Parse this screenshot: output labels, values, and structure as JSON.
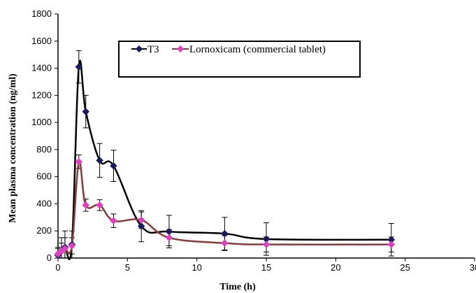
{
  "chart_data": {
    "type": "line",
    "xlabel": "Time (h)",
    "ylabel": "Mean plasma concentration (ng/ml)",
    "xlim": [
      0,
      30
    ],
    "ylim": [
      0,
      1800
    ],
    "xticks": [
      0,
      5,
      10,
      15,
      20,
      25,
      30
    ],
    "yticks": [
      0,
      200,
      400,
      600,
      800,
      1000,
      1200,
      1400,
      1600,
      1800
    ],
    "x_tick_labels": [
      "0",
      "5",
      "10",
      "15",
      "20",
      "25",
      "30"
    ],
    "y_tick_labels": [
      "0",
      "200",
      "400",
      "600",
      "800",
      "1000",
      "1200",
      "1400",
      "1600",
      "1800"
    ],
    "grid": false,
    "legend_position": "top-center",
    "series": [
      {
        "name": "T3",
        "color": "#000000",
        "marker_color": "#1a1a5e",
        "marker": "diamond",
        "x": [
          0,
          0.25,
          0.5,
          1,
          1.5,
          2,
          3,
          4,
          6,
          8,
          12,
          15,
          24
        ],
        "y": [
          20,
          50,
          80,
          100,
          1410,
          1080,
          720,
          680,
          235,
          195,
          180,
          140,
          135
        ],
        "error": [
          60,
          100,
          120,
          100,
          120,
          120,
          125,
          115,
          115,
          120,
          120,
          120,
          120
        ]
      },
      {
        "name": "Lornoxicam (commercial tablet)",
        "color": "#8b3a3a",
        "marker_color": "#e040c0",
        "marker": "diamond",
        "x": [
          0,
          0.25,
          0.5,
          1,
          1.5,
          2,
          3,
          4,
          6,
          8,
          12,
          15,
          24
        ],
        "y": [
          30,
          50,
          70,
          90,
          710,
          390,
          390,
          275,
          280,
          150,
          110,
          100,
          100
        ],
        "error": [
          40,
          60,
          80,
          60,
          50,
          45,
          40,
          50,
          60,
          60,
          55,
          55,
          55
        ]
      }
    ]
  }
}
